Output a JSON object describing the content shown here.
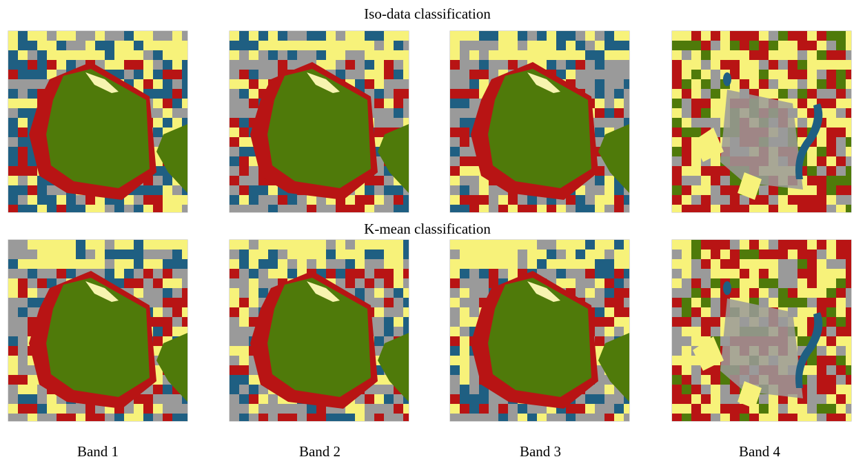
{
  "figure": {
    "rows": [
      {
        "title": "Iso-data classification"
      },
      {
        "title": "K-mean classification"
      }
    ],
    "columns": [
      "Band 1",
      "Band 2",
      "Band 3",
      "Band 4"
    ]
  }
}
